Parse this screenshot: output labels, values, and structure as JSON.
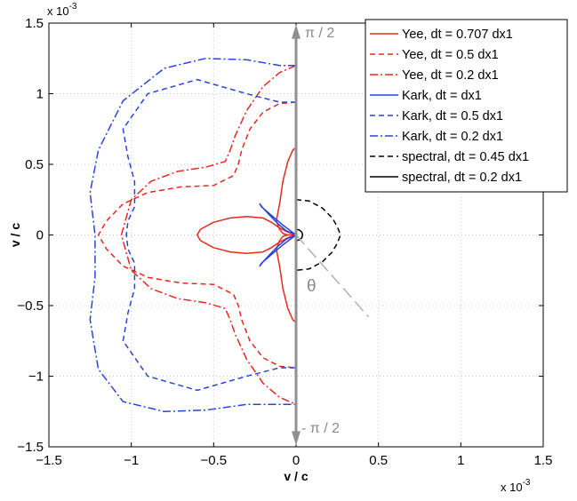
{
  "chart_data": {
    "type": "line",
    "xlabel": "v / c",
    "ylabel": "v / c",
    "x_multiplier": "x 10^-3",
    "y_multiplier": "x 10^-3",
    "x_exp_base": "x 10",
    "x_exp_power": "-3",
    "y_exp_base": "x 10",
    "y_exp_power": "-3",
    "xlim": [
      -1.5,
      1.5
    ],
    "ylim": [
      -1.5,
      1.5
    ],
    "x_ticks": [
      -1.5,
      -1,
      -0.5,
      0,
      0.5,
      1,
      1.5
    ],
    "x_tick_labels": [
      "−1.5",
      "−1",
      "−0.5",
      "0",
      "0.5",
      "1",
      "1.5"
    ],
    "y_ticks": [
      1.5,
      1,
      0.5,
      0,
      -0.5,
      -1,
      -1.5
    ],
    "y_tick_labels": [
      "1.5",
      "1",
      "0.5",
      "0",
      "−0.5",
      "−1",
      "−1.5"
    ],
    "grid": true,
    "legend_position": "top-right",
    "annotations": {
      "top_arrow": "π / 2",
      "bottom_arrow": "- π / 2",
      "angle": "θ"
    },
    "series": [
      {
        "name": "Yee, dt = 0.707 dx1",
        "color": "#e8281f",
        "dash": "solid",
        "x": [
          0,
          -0.05,
          -0.1,
          -0.15,
          -0.2,
          -0.3,
          -0.4,
          -0.5,
          -0.58,
          -0.6,
          -0.58,
          -0.5,
          -0.4,
          -0.3,
          -0.2,
          -0.15,
          -0.1,
          -0.05,
          0,
          0,
          -0.02,
          -0.05,
          -0.08,
          -0.1,
          -0.12,
          -0.1,
          -0.08,
          -0.05,
          -0.02,
          0,
          -0.02,
          -0.05,
          -0.08,
          -0.1,
          -0.12,
          -0.1,
          -0.08,
          -0.05,
          -0.02,
          0
        ],
        "y": [
          0,
          0.02,
          0.05,
          0.09,
          0.12,
          0.13,
          0.12,
          0.09,
          0.04,
          0,
          -0.04,
          -0.09,
          -0.12,
          -0.13,
          -0.12,
          -0.09,
          -0.05,
          -0.02,
          0,
          0.62,
          0.6,
          0.52,
          0.38,
          0.22,
          0.1,
          0.04,
          0.01,
          0,
          0,
          0,
          0,
          0,
          -0.01,
          -0.04,
          -0.1,
          -0.22,
          -0.38,
          -0.52,
          -0.6,
          -0.62
        ]
      },
      {
        "name": "Yee, dt = 0.5 dx1",
        "color": "#e8281f",
        "dash": "dashed",
        "x": [
          0,
          -0.1,
          -0.2,
          -0.28,
          -0.33,
          -0.35,
          -0.38,
          -0.5,
          -0.7,
          -0.9,
          -1.05,
          -1.15,
          -1.2,
          -1.15,
          -1.05,
          -0.9,
          -0.7,
          -0.5,
          -0.38,
          -0.35,
          -0.33,
          -0.28,
          -0.2,
          -0.1,
          0
        ],
        "y": [
          0.94,
          0.93,
          0.87,
          0.75,
          0.6,
          0.5,
          0.42,
          0.35,
          0.34,
          0.3,
          0.22,
          0.1,
          0,
          -0.1,
          -0.22,
          -0.3,
          -0.34,
          -0.35,
          -0.42,
          -0.5,
          -0.6,
          -0.75,
          -0.87,
          -0.93,
          -0.94
        ]
      },
      {
        "name": "Yee, dt = 0.2 dx1",
        "color": "#e8281f",
        "dash": "dashdot",
        "x": [
          0,
          -0.1,
          -0.2,
          -0.3,
          -0.37,
          -0.4,
          -0.43,
          -0.55,
          -0.72,
          -0.88,
          -1.0,
          -1.06,
          -1.0,
          -0.88,
          -0.72,
          -0.55,
          -0.43,
          -0.4,
          -0.37,
          -0.3,
          -0.2,
          -0.1,
          0
        ],
        "y": [
          1.2,
          1.15,
          1.05,
          0.88,
          0.7,
          0.6,
          0.52,
          0.48,
          0.45,
          0.38,
          0.25,
          0,
          -0.25,
          -0.38,
          -0.45,
          -0.48,
          -0.52,
          -0.6,
          -0.7,
          -0.88,
          -1.05,
          -1.15,
          -1.2
        ]
      },
      {
        "name": "Kark, dt = dx1",
        "color": "#2a45d6",
        "dash": "solid",
        "x": [
          0,
          -0.08,
          -0.16,
          -0.21,
          -0.22,
          -0.2,
          -0.16,
          -0.11,
          -0.06,
          -0.02,
          0,
          -0.02,
          -0.06,
          -0.11,
          -0.16,
          -0.2,
          -0.22,
          -0.21,
          -0.16,
          -0.08,
          0
        ],
        "y": [
          0,
          0.07,
          0.15,
          0.2,
          0.22,
          0.19,
          0.14,
          0.08,
          0.03,
          0.01,
          0,
          -0.01,
          -0.03,
          -0.08,
          -0.14,
          -0.19,
          -0.22,
          -0.2,
          -0.15,
          -0.07,
          0
        ]
      },
      {
        "name": "Kark, dt = 0.5 dx1",
        "color": "#2a45d6",
        "dash": "dashed",
        "x": [
          0,
          -0.1,
          -0.3,
          -0.6,
          -0.9,
          -1.05,
          -1.02,
          -0.98,
          -0.98,
          -1.02,
          -1.03,
          -1.02,
          -0.98,
          -0.98,
          -1.02,
          -1.05,
          -0.9,
          -0.6,
          -0.3,
          -0.1,
          0
        ],
        "y": [
          0.94,
          0.94,
          1.0,
          1.1,
          1.0,
          0.75,
          0.55,
          0.38,
          0.2,
          0.1,
          0,
          -0.1,
          -0.2,
          -0.38,
          -0.55,
          -0.75,
          -1.0,
          -1.1,
          -1.0,
          -0.94,
          -0.94
        ]
      },
      {
        "name": "Kark, dt = 0.2 dx1",
        "color": "#2a45d6",
        "dash": "dashdot",
        "x": [
          0,
          -0.1,
          -0.3,
          -0.55,
          -0.8,
          -1.05,
          -1.2,
          -1.25,
          -1.22,
          -1.22,
          -1.25,
          -1.2,
          -1.05,
          -0.8,
          -0.55,
          -0.3,
          -0.1,
          0
        ],
        "y": [
          1.2,
          1.2,
          1.24,
          1.25,
          1.18,
          0.95,
          0.6,
          0.3,
          0,
          -0.3,
          -0.6,
          -0.95,
          -1.18,
          -1.25,
          -1.24,
          -1.2,
          -1.2,
          -1.2
        ]
      },
      {
        "name": "spectral, dt = 0.45 dx1",
        "color": "#000000",
        "dash": "dashed",
        "x": [
          0,
          0.08,
          0.16,
          0.22,
          0.25,
          0.27,
          0.25,
          0.22,
          0.16,
          0.08,
          0
        ],
        "y": [
          0.25,
          0.24,
          0.19,
          0.12,
          0.06,
          0,
          -0.06,
          -0.12,
          -0.19,
          -0.24,
          -0.25
        ]
      },
      {
        "name": "spectral, dt = 0.2 dx1",
        "color": "#000000",
        "dash": "solid",
        "x": [
          0,
          0.02,
          0.035,
          0.04,
          0.035,
          0.02,
          0
        ],
        "y": [
          0.04,
          0.035,
          0.02,
          0,
          -0.02,
          -0.035,
          -0.04
        ]
      }
    ]
  }
}
